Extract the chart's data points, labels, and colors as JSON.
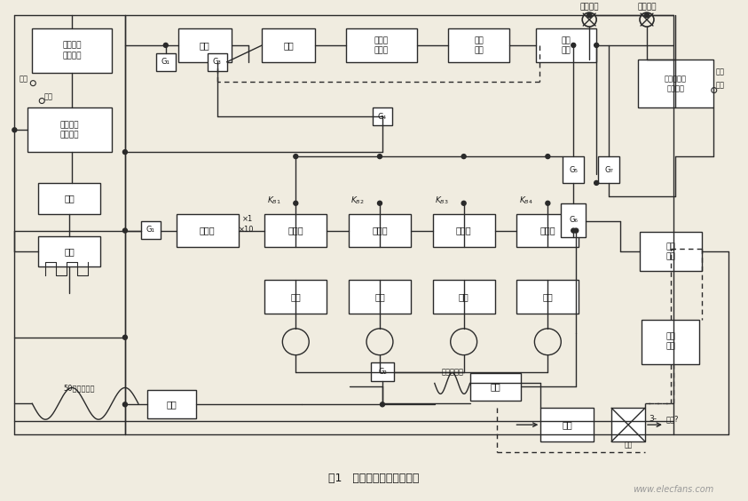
{
  "bg_color": "#f0ece0",
  "line_color": "#2a2a2a",
  "box_fill": "#ffffff",
  "text_color": "#1a1a1a",
  "fig_width": 8.43,
  "fig_height": 5.64,
  "dpi": 100,
  "caption": "图1   预定计数器原理方框图",
  "watermark": "www.elecfans.com",
  "stop_label": "停止指示",
  "start_label": "起动指示",
  "work_label": "工作",
  "fault_label": "故障"
}
